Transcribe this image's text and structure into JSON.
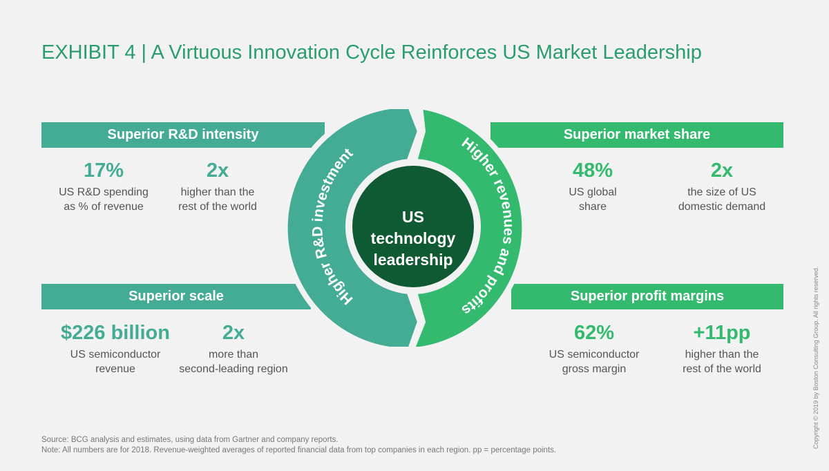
{
  "title": "EXHIBIT 4 | A Virtuous Innovation Cycle Reinforces US Market Leadership",
  "cycle": {
    "center_lines": [
      "US",
      "technology",
      "leadership"
    ],
    "left_arc": "Higher R&D investment",
    "right_arc": "Higher revenues and profits"
  },
  "panels": {
    "rd_intensity": {
      "heading": "Superior R&D intensity",
      "stat1": {
        "value": "17%",
        "lines": [
          "US R&D spending",
          "as % of revenue"
        ]
      },
      "stat2": {
        "value": "2x",
        "lines": [
          "higher than the",
          "rest of the world"
        ]
      }
    },
    "scale": {
      "heading": "Superior scale",
      "stat1": {
        "value": "$226 billion",
        "lines": [
          "US semiconductor",
          "revenue"
        ]
      },
      "stat2": {
        "value": "2x",
        "lines": [
          "more than",
          "second-leading region"
        ]
      }
    },
    "market_share": {
      "heading": "Superior market share",
      "stat1": {
        "value": "48%",
        "lines": [
          "US global",
          "share"
        ]
      },
      "stat2": {
        "value": "2x",
        "lines": [
          "the size of US",
          "domestic demand"
        ]
      }
    },
    "profit_margins": {
      "heading": "Superior profit margins",
      "stat1": {
        "value": "62%",
        "lines": [
          "US semiconductor",
          "gross margin"
        ]
      },
      "stat2": {
        "value": "+11pp",
        "lines": [
          "higher than the",
          "rest of the world"
        ]
      }
    }
  },
  "notes": {
    "source": "Source: BCG analysis and estimates, using data from Gartner and company reports.",
    "note": "Note: All numbers are for 2018. Revenue-weighted averages of reported financial data from top companies in each region. pp = percentage points."
  },
  "copyright": "Copyright © 2019 by Boston Consulting Group. All rights reserved.",
  "colors": {
    "teal": "#44ab94",
    "green": "#34ba6f",
    "dark_green": "#0f5a33",
    "title": "#2a9d6e"
  }
}
